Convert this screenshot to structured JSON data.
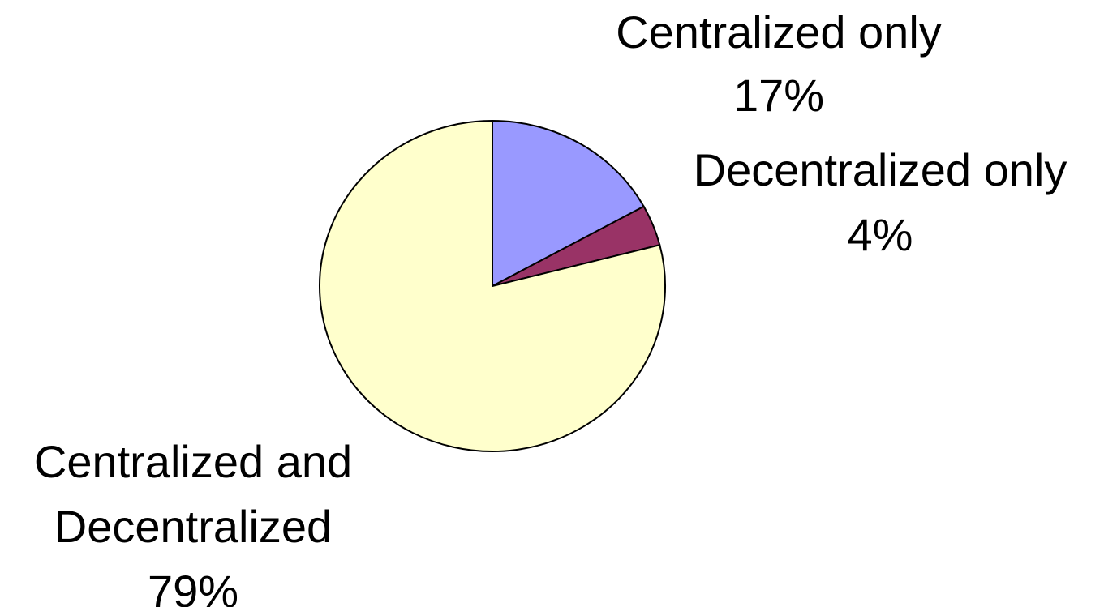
{
  "chart_data": {
    "type": "pie",
    "categories": [
      "Centralized only",
      "Decentralized only",
      "Centralized and Decentralized"
    ],
    "values": [
      17,
      4,
      79
    ],
    "value_labels": [
      "17%",
      "4%",
      "79%"
    ],
    "colors": [
      "#9999ff",
      "#993366",
      "#ffffcc"
    ]
  }
}
